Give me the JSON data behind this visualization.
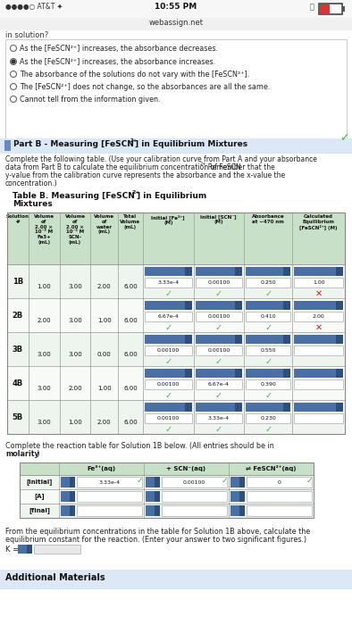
{
  "radio_options": [
    {
      "text": "As the [FeSCN²⁺] increases, the absorbance decreases.",
      "selected": false
    },
    {
      "text": "As the [FeSCN²⁺] increases, the absorbance increases.",
      "selected": true
    },
    {
      "text": "The absorbance of the solutions do not vary with the [FeSCN²⁺].",
      "selected": false
    },
    {
      "text": "The [FeSCN²⁺] does not change, so the absorbances are all the same.",
      "selected": false
    },
    {
      "text": "Cannot tell from the information given.",
      "selected": false
    }
  ],
  "table_rows": [
    {
      "solution": "1B",
      "vol_fe": "1.00",
      "vol_scn": "3.00",
      "vol_water": "2.00",
      "total_vol": "6.00",
      "init_fe": "3.33e-4",
      "init_scn": "0.00100",
      "absorbance": "0.250",
      "calc_eq": "1.00",
      "check_calc": "x"
    },
    {
      "solution": "2B",
      "vol_fe": "2.00",
      "vol_scn": "3.00",
      "vol_water": "1.00",
      "total_vol": "6.00",
      "init_fe": "6.67e-4",
      "init_scn": "0.00100",
      "absorbance": "0.410",
      "calc_eq": "2.00",
      "check_calc": "x"
    },
    {
      "solution": "3B",
      "vol_fe": "3.00",
      "vol_scn": "3.00",
      "vol_water": "0.00",
      "total_vol": "6.00",
      "init_fe": "0.00100",
      "init_scn": "0.00100",
      "absorbance": "0.550",
      "calc_eq": "",
      "check_calc": ""
    },
    {
      "solution": "4B",
      "vol_fe": "3.00",
      "vol_scn": "2.00",
      "vol_water": "1.00",
      "total_vol": "6.00",
      "init_fe": "0.00100",
      "init_scn": "6.67e-4",
      "absorbance": "0.390",
      "calc_eq": "",
      "check_calc": ""
    },
    {
      "solution": "5B",
      "vol_fe": "3.00",
      "vol_scn": "1.00",
      "vol_water": "2.00",
      "total_vol": "6.00",
      "init_fe": "0.00100",
      "init_scn": "3.33e-4",
      "absorbance": "0.230",
      "calc_eq": "",
      "check_calc": ""
    }
  ],
  "reaction_rows": [
    {
      "label": "[initial]",
      "fe": "3.33e-4",
      "scn": "0.00100",
      "fescn": "0"
    },
    {
      "label": "[A]",
      "fe": "",
      "scn": "",
      "fescn": ""
    },
    {
      "label": "[final]",
      "fe": "",
      "scn": "",
      "fescn": ""
    }
  ],
  "bg_white": "#ffffff",
  "bg_light_blue": "#dce8f5",
  "header_green": "#c8dfc8",
  "row_green": "#e8f5e8",
  "check_green": "#4CAF50",
  "cross_red": "#cc2222",
  "btn_blue": "#4a6fa5",
  "btn_dark": "#2d4f7a"
}
